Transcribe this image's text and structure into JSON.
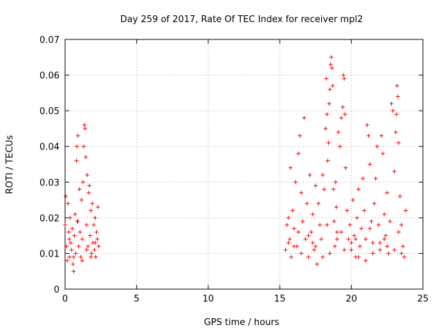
{
  "chart_data": {
    "type": "scatter",
    "title": "Day 259 of 2017, Rate Of TEC Index for receiver mpl2",
    "xlabel": "GPS time / hours",
    "ylabel": "ROTI / TECUs",
    "xlim": [
      0,
      25
    ],
    "ylim": [
      0,
      0.07
    ],
    "xticks": [
      "0",
      "5",
      "10",
      "15",
      "20",
      "25"
    ],
    "yticks": [
      "0",
      "0.01",
      "0.02",
      "0.03",
      "0.04",
      "0.05",
      "0.06",
      "0.07"
    ],
    "grid": true,
    "legend": "none",
    "marker": "plus",
    "color": "#ff0000",
    "series": [
      {
        "points": [
          [
            0.0,
            0.018
          ],
          [
            0.05,
            0.026
          ],
          [
            0.1,
            0.012
          ],
          [
            0.15,
            0.008
          ],
          [
            0.2,
            0.024
          ],
          [
            0.25,
            0.016
          ],
          [
            0.3,
            0.009
          ],
          [
            0.35,
            0.02
          ],
          [
            0.4,
            0.013
          ],
          [
            0.45,
            0.011
          ],
          [
            0.5,
            0.017
          ],
          [
            0.55,
            0.007
          ],
          [
            0.6,
            0.005
          ],
          [
            0.65,
            0.015
          ],
          [
            0.7,
            0.021
          ],
          [
            0.75,
            0.01
          ],
          [
            0.8,
            0.036
          ],
          [
            0.82,
            0.04
          ],
          [
            0.85,
            0.019
          ],
          [
            0.9,
            0.043
          ],
          [
            0.95,
            0.012
          ],
          [
            1.0,
            0.028
          ],
          [
            1.05,
            0.016
          ],
          [
            1.1,
            0.009
          ],
          [
            1.15,
            0.025
          ],
          [
            1.2,
            0.014
          ],
          [
            1.25,
            0.03
          ],
          [
            1.3,
            0.04
          ],
          [
            1.35,
            0.046
          ],
          [
            1.4,
            0.045
          ],
          [
            1.45,
            0.037
          ],
          [
            1.5,
            0.018
          ],
          [
            1.55,
            0.032
          ],
          [
            1.6,
            0.012
          ],
          [
            1.65,
            0.027
          ],
          [
            1.7,
            0.029
          ],
          [
            1.75,
            0.015
          ],
          [
            1.8,
            0.022
          ],
          [
            1.85,
            0.01
          ],
          [
            1.9,
            0.024
          ],
          [
            1.95,
            0.013
          ],
          [
            2.0,
            0.018
          ],
          [
            2.05,
            0.011
          ],
          [
            2.1,
            0.02
          ],
          [
            2.15,
            0.009
          ],
          [
            2.2,
            0.016
          ],
          [
            2.25,
            0.014
          ],
          [
            2.3,
            0.023
          ],
          [
            2.35,
            0.012
          ],
          [
            0.3,
            0.014
          ],
          [
            0.6,
            0.009
          ],
          [
            0.9,
            0.019
          ],
          [
            1.2,
            0.008
          ],
          [
            1.5,
            0.011
          ],
          [
            1.8,
            0.009
          ],
          [
            2.1,
            0.013
          ],
          [
            15.4,
            0.011
          ],
          [
            15.5,
            0.018
          ],
          [
            15.6,
            0.02
          ],
          [
            15.7,
            0.014
          ],
          [
            15.75,
            0.034
          ],
          [
            15.8,
            0.009
          ],
          [
            15.9,
            0.022
          ],
          [
            16.0,
            0.017
          ],
          [
            16.1,
            0.03
          ],
          [
            16.2,
            0.012
          ],
          [
            16.3,
            0.038
          ],
          [
            16.4,
            0.043
          ],
          [
            16.5,
            0.027
          ],
          [
            16.6,
            0.019
          ],
          [
            16.7,
            0.048
          ],
          [
            16.8,
            0.014
          ],
          [
            16.9,
            0.024
          ],
          [
            17.0,
            0.009
          ],
          [
            17.1,
            0.032
          ],
          [
            17.2,
            0.016
          ],
          [
            17.3,
            0.021
          ],
          [
            17.4,
            0.011
          ],
          [
            17.5,
            0.029
          ],
          [
            17.6,
            0.007
          ],
          [
            17.7,
            0.024
          ],
          [
            17.8,
            0.018
          ],
          [
            17.9,
            0.014
          ],
          [
            18.0,
            0.032
          ],
          [
            18.1,
            0.028
          ],
          [
            18.2,
            0.045
          ],
          [
            18.25,
            0.059
          ],
          [
            18.3,
            0.049
          ],
          [
            18.35,
            0.036
          ],
          [
            18.4,
            0.041
          ],
          [
            18.45,
            0.052
          ],
          [
            18.5,
            0.056
          ],
          [
            18.55,
            0.063
          ],
          [
            18.6,
            0.065
          ],
          [
            18.65,
            0.062
          ],
          [
            18.7,
            0.057
          ],
          [
            18.75,
            0.028
          ],
          [
            18.8,
            0.019
          ],
          [
            18.85,
            0.012
          ],
          [
            18.9,
            0.03
          ],
          [
            18.95,
            0.023
          ],
          [
            19.0,
            0.016
          ],
          [
            19.1,
            0.044
          ],
          [
            19.2,
            0.04
          ],
          [
            19.3,
            0.048
          ],
          [
            19.4,
            0.051
          ],
          [
            19.45,
            0.06
          ],
          [
            19.5,
            0.059
          ],
          [
            19.55,
            0.049
          ],
          [
            19.6,
            0.034
          ],
          [
            19.7,
            0.022
          ],
          [
            19.8,
            0.014
          ],
          [
            19.9,
            0.018
          ],
          [
            20.0,
            0.011
          ],
          [
            20.1,
            0.025
          ],
          [
            20.2,
            0.015
          ],
          [
            20.3,
            0.009
          ],
          [
            20.4,
            0.02
          ],
          [
            20.5,
            0.028
          ],
          [
            20.6,
            0.012
          ],
          [
            20.7,
            0.017
          ],
          [
            20.8,
            0.031
          ],
          [
            20.9,
            0.022
          ],
          [
            21.0,
            0.008
          ],
          [
            21.1,
            0.046
          ],
          [
            21.2,
            0.043
          ],
          [
            21.3,
            0.035
          ],
          [
            21.4,
            0.019
          ],
          [
            21.5,
            0.013
          ],
          [
            21.6,
            0.024
          ],
          [
            21.7,
            0.031
          ],
          [
            21.8,
            0.04
          ],
          [
            21.9,
            0.018
          ],
          [
            22.0,
            0.011
          ],
          [
            22.1,
            0.043
          ],
          [
            22.2,
            0.038
          ],
          [
            22.3,
            0.021
          ],
          [
            22.4,
            0.015
          ],
          [
            22.5,
            0.027
          ],
          [
            22.6,
            0.01
          ],
          [
            22.7,
            0.019
          ],
          [
            22.8,
            0.052
          ],
          [
            22.9,
            0.05
          ],
          [
            23.0,
            0.033
          ],
          [
            23.1,
            0.044
          ],
          [
            23.15,
            0.049
          ],
          [
            23.2,
            0.057
          ],
          [
            23.25,
            0.054
          ],
          [
            23.3,
            0.041
          ],
          [
            23.4,
            0.026
          ],
          [
            23.5,
            0.018
          ],
          [
            23.6,
            0.012
          ],
          [
            23.7,
            0.009
          ],
          [
            23.8,
            0.022
          ],
          [
            16.0,
            0.012
          ],
          [
            16.5,
            0.01
          ],
          [
            17.0,
            0.015
          ],
          [
            17.5,
            0.012
          ],
          [
            18.0,
            0.009
          ],
          [
            18.5,
            0.01
          ],
          [
            19.0,
            0.014
          ],
          [
            19.5,
            0.011
          ],
          [
            20.0,
            0.013
          ],
          [
            20.5,
            0.009
          ],
          [
            21.0,
            0.014
          ],
          [
            21.5,
            0.01
          ],
          [
            22.0,
            0.013
          ],
          [
            22.5,
            0.012
          ],
          [
            23.0,
            0.011
          ],
          [
            23.5,
            0.01
          ],
          [
            15.6,
            0.013
          ],
          [
            16.3,
            0.016
          ],
          [
            17.3,
            0.013
          ],
          [
            18.3,
            0.018
          ],
          [
            19.3,
            0.016
          ],
          [
            20.3,
            0.014
          ],
          [
            21.3,
            0.017
          ],
          [
            22.3,
            0.014
          ],
          [
            23.3,
            0.016
          ]
        ]
      }
    ]
  }
}
